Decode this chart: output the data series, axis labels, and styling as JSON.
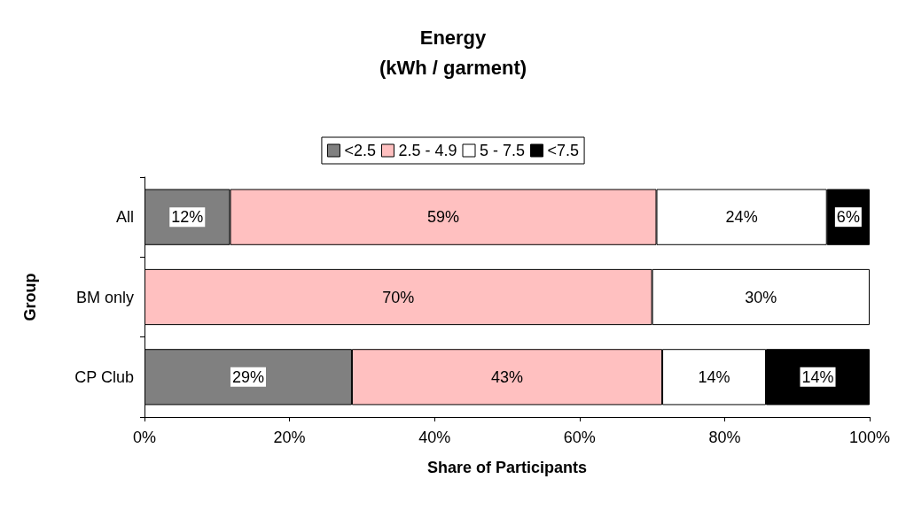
{
  "chart_data": {
    "type": "bar",
    "orientation": "horizontal",
    "stacked": true,
    "title": "Energy\n(kWh / garment)",
    "xlabel": "Share of Participants",
    "ylabel": "Group",
    "categories": [
      "All",
      "BM only",
      "CP Club"
    ],
    "series": [
      {
        "name": "<2.5",
        "color": "#808080",
        "values": [
          11.8,
          null,
          28.6
        ],
        "value_labels": [
          "12%",
          null,
          "29%"
        ]
      },
      {
        "name": "2.5 - 4.9",
        "color": "#ffc0c0",
        "values": [
          58.8,
          70,
          42.8
        ],
        "value_labels": [
          "59%",
          "70%",
          "43%"
        ]
      },
      {
        "name": "5 - 7.5",
        "color": "#ffffff",
        "values": [
          23.5,
          30,
          14.3
        ],
        "value_labels": [
          "24%",
          "30%",
          "14%"
        ]
      },
      {
        "name": "<7.5",
        "color": "#000000",
        "values": [
          5.9,
          null,
          14.3
        ],
        "value_labels": [
          "6%",
          null,
          "14%"
        ]
      }
    ],
    "xlim": [
      0,
      100
    ],
    "xticks": [
      {
        "value": 0,
        "label": "0%"
      },
      {
        "value": 20,
        "label": "20%"
      },
      {
        "value": 40,
        "label": "40%"
      },
      {
        "value": 60,
        "label": "60%"
      },
      {
        "value": 80,
        "label": "80%"
      },
      {
        "value": 100,
        "label": "100%"
      }
    ],
    "legend": "top",
    "grid": false
  }
}
